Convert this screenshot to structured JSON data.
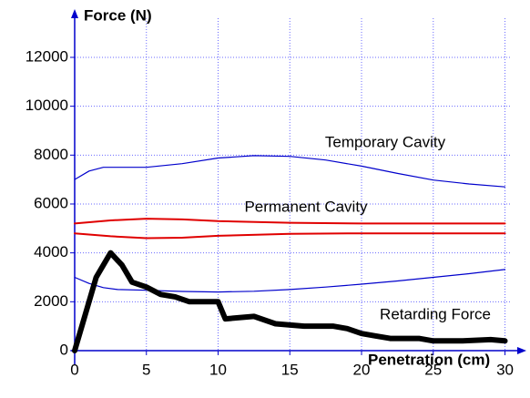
{
  "chart_data": {
    "type": "line",
    "y_label": "Force (N)",
    "x_label": "Penetration (cm)",
    "xlim": [
      0,
      31.3
    ],
    "ylim": [
      -500,
      13900
    ],
    "xticks": [
      0,
      5,
      10,
      15,
      20,
      25,
      30
    ],
    "yticks": [
      0,
      2000,
      4000,
      6000,
      8000,
      10000,
      12000
    ],
    "grid": true,
    "series": [
      {
        "name": "Temporary Cavity",
        "color": "#0000cc",
        "width": 1.2,
        "x": [
          0,
          1,
          2,
          3.5,
          5,
          7.5,
          10,
          12.5,
          15,
          17.5,
          20,
          22.5,
          25,
          27.5,
          30
        ],
        "values": [
          7000,
          7350,
          7500,
          7500,
          7500,
          7650,
          7880,
          7980,
          7950,
          7800,
          7550,
          7250,
          6980,
          6820,
          6700
        ]
      },
      {
        "color": "#0000cc",
        "width": 1.2,
        "x": [
          0,
          1,
          2,
          3,
          5,
          7.5,
          10,
          12.5,
          15,
          17.5,
          20,
          22.5,
          25,
          27.5,
          30
        ],
        "values": [
          3000,
          2750,
          2580,
          2500,
          2470,
          2420,
          2400,
          2430,
          2500,
          2600,
          2720,
          2850,
          3000,
          3150,
          3320
        ]
      },
      {
        "name": "Permanent Cavity",
        "color": "#e00000",
        "width": 2,
        "x": [
          0,
          2.5,
          5,
          7.5,
          10,
          15,
          20,
          25,
          30
        ],
        "values": [
          5200,
          5330,
          5400,
          5370,
          5300,
          5230,
          5200,
          5200,
          5200
        ]
      },
      {
        "color": "#e00000",
        "width": 2,
        "x": [
          0,
          2.5,
          5,
          7.5,
          10,
          15,
          20,
          25,
          30
        ],
        "values": [
          4800,
          4680,
          4600,
          4620,
          4700,
          4780,
          4800,
          4800,
          4800
        ]
      },
      {
        "name": "Retarding Force",
        "color": "#000000",
        "width": 6,
        "x": [
          0,
          0.5,
          1.5,
          2.5,
          3.3,
          4,
          5,
          6,
          7,
          8,
          10,
          10.5,
          12.5,
          14,
          16,
          18,
          19,
          20,
          21,
          22,
          24,
          25,
          27,
          29,
          30
        ],
        "values": [
          0,
          1000,
          3000,
          4000,
          3500,
          2800,
          2600,
          2300,
          2200,
          2000,
          2000,
          1300,
          1400,
          1100,
          1000,
          1000,
          900,
          700,
          600,
          500,
          500,
          400,
          400,
          450,
          400
        ]
      }
    ]
  }
}
